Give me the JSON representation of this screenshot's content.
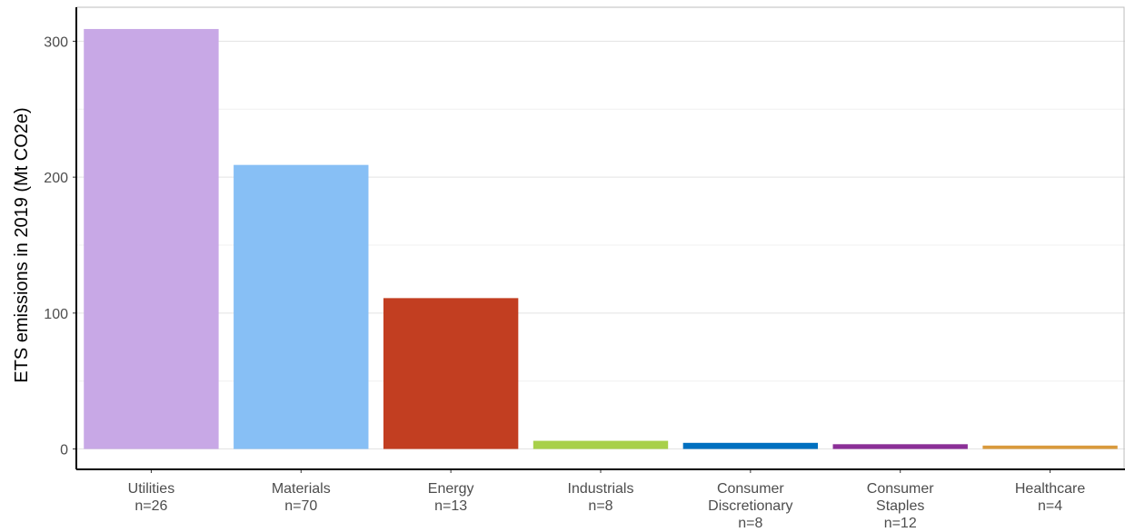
{
  "chart_data": {
    "type": "bar",
    "categories": [
      [
        "Utilities",
        "n=26"
      ],
      [
        "Materials",
        "n=70"
      ],
      [
        "Energy",
        "n=13"
      ],
      [
        "Industrials",
        "n=8"
      ],
      [
        "Consumer",
        "Discretionary",
        "n=8"
      ],
      [
        "Consumer",
        "Staples",
        "n=12"
      ],
      [
        "Healthcare",
        "n=4"
      ]
    ],
    "values": [
      309,
      209,
      111,
      6,
      4.5,
      3.5,
      2.5
    ],
    "colors": [
      "#c8a8e6",
      "#87bff5",
      "#c23e21",
      "#a8d04a",
      "#0070c0",
      "#8b2f97",
      "#d99a3c"
    ],
    "title": "",
    "xlabel": "",
    "ylabel": "ETS emissions in 2019 (Mt CO2e)",
    "ylim": [
      -15,
      325
    ],
    "yticks": [
      0,
      100,
      200,
      300
    ],
    "grid": true
  }
}
